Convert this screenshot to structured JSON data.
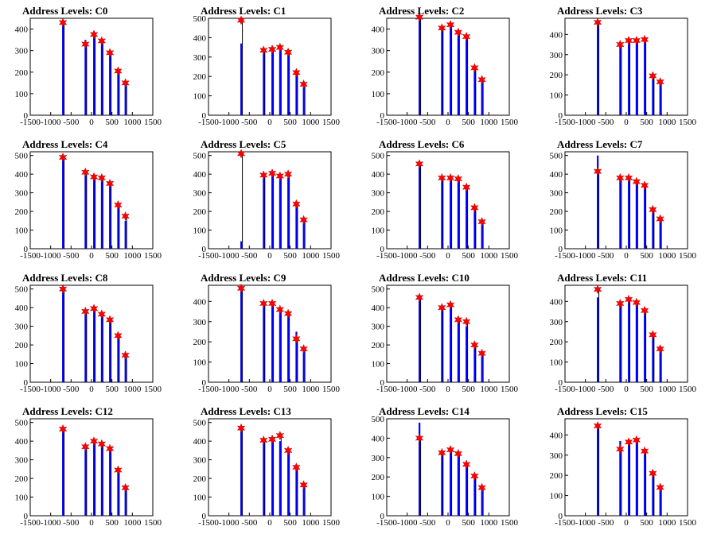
{
  "figure": {
    "background": "#ffffff"
  },
  "colors": {
    "peaks": "#0000ff",
    "raw": "#000000",
    "marker": "#ff0000",
    "axis": "#000000"
  },
  "chart_data": [
    {
      "type": "bar",
      "title": "Address Levels: C0",
      "xlim": [
        -1500,
        1500
      ],
      "ylim": [
        0,
        450
      ],
      "yticks": [
        0,
        100,
        200,
        300,
        400
      ],
      "xticks": [
        -1500,
        -1000,
        -500,
        0,
        500,
        1000,
        1500
      ],
      "peaks": [
        {
          "x": -700,
          "y": 430,
          "blue": 430
        },
        {
          "x": -150,
          "y": 330,
          "blue": 350
        },
        {
          "x": 60,
          "y": 375,
          "blue": 370
        },
        {
          "x": 250,
          "y": 345,
          "blue": 340
        },
        {
          "x": 450,
          "y": 290,
          "blue": 300
        },
        {
          "x": 650,
          "y": 205,
          "blue": 210
        },
        {
          "x": 830,
          "y": 150,
          "blue": 150
        }
      ]
    },
    {
      "type": "bar",
      "title": "Address Levels: C1",
      "xlim": [
        -1500,
        1500
      ],
      "ylim": [
        0,
        500
      ],
      "yticks": [
        0,
        100,
        200,
        300,
        400,
        500
      ],
      "xticks": [
        -1500,
        -1000,
        -500,
        0,
        500,
        1000,
        1500
      ],
      "peaks": [
        {
          "x": -700,
          "y": 490,
          "blue": 370
        },
        {
          "x": -150,
          "y": 335,
          "blue": 330
        },
        {
          "x": 60,
          "y": 340,
          "blue": 340
        },
        {
          "x": 250,
          "y": 350,
          "blue": 340
        },
        {
          "x": 450,
          "y": 325,
          "blue": 320
        },
        {
          "x": 650,
          "y": 220,
          "blue": 220
        },
        {
          "x": 830,
          "y": 160,
          "blue": 160
        }
      ]
    },
    {
      "type": "bar",
      "title": "Address Levels: C2",
      "xlim": [
        -1500,
        1500
      ],
      "ylim": [
        0,
        450
      ],
      "yticks": [
        0,
        100,
        200,
        300,
        400
      ],
      "xticks": [
        -1500,
        -1000,
        -500,
        0,
        500,
        1000,
        1500
      ],
      "peaks": [
        {
          "x": -700,
          "y": 455,
          "blue": 450
        },
        {
          "x": -150,
          "y": 405,
          "blue": 400
        },
        {
          "x": 60,
          "y": 420,
          "blue": 420
        },
        {
          "x": 250,
          "y": 385,
          "blue": 370
        },
        {
          "x": 450,
          "y": 365,
          "blue": 370
        },
        {
          "x": 650,
          "y": 220,
          "blue": 230
        },
        {
          "x": 830,
          "y": 165,
          "blue": 170
        }
      ]
    },
    {
      "type": "bar",
      "title": "Address Levels: C3",
      "xlim": [
        -1500,
        1500
      ],
      "ylim": [
        0,
        480
      ],
      "yticks": [
        0,
        100,
        200,
        300,
        400
      ],
      "xticks": [
        -1500,
        -1000,
        -500,
        0,
        500,
        1000,
        1500
      ],
      "peaks": [
        {
          "x": -700,
          "y": 460,
          "blue": 450
        },
        {
          "x": -150,
          "y": 350,
          "blue": 360
        },
        {
          "x": 60,
          "y": 370,
          "blue": 370
        },
        {
          "x": 250,
          "y": 370,
          "blue": 370
        },
        {
          "x": 450,
          "y": 375,
          "blue": 370
        },
        {
          "x": 650,
          "y": 195,
          "blue": 210
        },
        {
          "x": 830,
          "y": 165,
          "blue": 170
        }
      ]
    },
    {
      "type": "bar",
      "title": "Address Levels: C4",
      "xlim": [
        -1500,
        1500
      ],
      "ylim": [
        0,
        520
      ],
      "yticks": [
        0,
        100,
        200,
        300,
        400,
        500
      ],
      "xticks": [
        -1500,
        -1000,
        -500,
        0,
        500,
        1000,
        1500
      ],
      "peaks": [
        {
          "x": -700,
          "y": 490,
          "blue": 480
        },
        {
          "x": -150,
          "y": 410,
          "blue": 400
        },
        {
          "x": 60,
          "y": 385,
          "blue": 380
        },
        {
          "x": 250,
          "y": 380,
          "blue": 380
        },
        {
          "x": 450,
          "y": 350,
          "blue": 340
        },
        {
          "x": 650,
          "y": 235,
          "blue": 230
        },
        {
          "x": 830,
          "y": 175,
          "blue": 150
        }
      ]
    },
    {
      "type": "bar",
      "title": "Address Levels: C5",
      "xlim": [
        -1500,
        1500
      ],
      "ylim": [
        0,
        520
      ],
      "yticks": [
        0,
        100,
        200,
        300,
        400,
        500
      ],
      "xticks": [
        -1500,
        -1000,
        -500,
        0,
        500,
        1000,
        1500
      ],
      "peaks": [
        {
          "x": -700,
          "y": 510,
          "blue": 40
        },
        {
          "x": -150,
          "y": 395,
          "blue": 390
        },
        {
          "x": 60,
          "y": 405,
          "blue": 400
        },
        {
          "x": 250,
          "y": 390,
          "blue": 390
        },
        {
          "x": 450,
          "y": 400,
          "blue": 380
        },
        {
          "x": 650,
          "y": 240,
          "blue": 240
        },
        {
          "x": 830,
          "y": 155,
          "blue": 150
        }
      ]
    },
    {
      "type": "bar",
      "title": "Address Levels: C6",
      "xlim": [
        -1500,
        1500
      ],
      "ylim": [
        0,
        520
      ],
      "yticks": [
        0,
        100,
        200,
        300,
        400,
        500
      ],
      "xticks": [
        -1500,
        -1000,
        -500,
        0,
        500,
        1000,
        1500
      ],
      "peaks": [
        {
          "x": -700,
          "y": 455,
          "blue": 450
        },
        {
          "x": -150,
          "y": 380,
          "blue": 380
        },
        {
          "x": 60,
          "y": 380,
          "blue": 370
        },
        {
          "x": 250,
          "y": 375,
          "blue": 370
        },
        {
          "x": 450,
          "y": 330,
          "blue": 320
        },
        {
          "x": 650,
          "y": 220,
          "blue": 230
        },
        {
          "x": 830,
          "y": 145,
          "blue": 140
        }
      ]
    },
    {
      "type": "bar",
      "title": "Address Levels: C7",
      "xlim": [
        -1500,
        1500
      ],
      "ylim": [
        0,
        520
      ],
      "yticks": [
        0,
        100,
        200,
        300,
        400,
        500
      ],
      "xticks": [
        -1500,
        -1000,
        -500,
        0,
        500,
        1000,
        1500
      ],
      "peaks": [
        {
          "x": -700,
          "y": 415,
          "blue": 500
        },
        {
          "x": -150,
          "y": 380,
          "blue": 380
        },
        {
          "x": 60,
          "y": 380,
          "blue": 380
        },
        {
          "x": 250,
          "y": 360,
          "blue": 360
        },
        {
          "x": 450,
          "y": 340,
          "blue": 330
        },
        {
          "x": 650,
          "y": 210,
          "blue": 200
        },
        {
          "x": 830,
          "y": 160,
          "blue": 150
        }
      ]
    },
    {
      "type": "bar",
      "title": "Address Levels: C8",
      "xlim": [
        -1500,
        1500
      ],
      "ylim": [
        0,
        520
      ],
      "yticks": [
        0,
        100,
        200,
        300,
        400,
        500
      ],
      "xticks": [
        -1500,
        -1000,
        -500,
        0,
        500,
        1000,
        1500
      ],
      "peaks": [
        {
          "x": -700,
          "y": 500,
          "blue": 480
        },
        {
          "x": -150,
          "y": 380,
          "blue": 380
        },
        {
          "x": 60,
          "y": 395,
          "blue": 390
        },
        {
          "x": 250,
          "y": 365,
          "blue": 370
        },
        {
          "x": 450,
          "y": 335,
          "blue": 340
        },
        {
          "x": 650,
          "y": 250,
          "blue": 260
        },
        {
          "x": 830,
          "y": 145,
          "blue": 150
        }
      ]
    },
    {
      "type": "bar",
      "title": "Address Levels: C9",
      "xlim": [
        -1500,
        1500
      ],
      "ylim": [
        0,
        480
      ],
      "yticks": [
        0,
        100,
        200,
        300,
        400
      ],
      "xticks": [
        -1500,
        -1000,
        -500,
        0,
        500,
        1000,
        1500
      ],
      "peaks": [
        {
          "x": -700,
          "y": 465,
          "blue": 460
        },
        {
          "x": -150,
          "y": 390,
          "blue": 390
        },
        {
          "x": 60,
          "y": 390,
          "blue": 390
        },
        {
          "x": 250,
          "y": 360,
          "blue": 360
        },
        {
          "x": 450,
          "y": 340,
          "blue": 330
        },
        {
          "x": 650,
          "y": 215,
          "blue": 250
        },
        {
          "x": 830,
          "y": 165,
          "blue": 170
        }
      ]
    },
    {
      "type": "bar",
      "title": "Address Levels: C10",
      "xlim": [
        -1500,
        1500
      ],
      "ylim": [
        0,
        520
      ],
      "yticks": [
        0,
        100,
        200,
        300,
        400,
        500
      ],
      "xticks": [
        -1500,
        -1000,
        -500,
        0,
        500,
        1000,
        1500
      ],
      "peaks": [
        {
          "x": -700,
          "y": 455,
          "blue": 440
        },
        {
          "x": -150,
          "y": 400,
          "blue": 390
        },
        {
          "x": 60,
          "y": 415,
          "blue": 400
        },
        {
          "x": 250,
          "y": 335,
          "blue": 340
        },
        {
          "x": 450,
          "y": 325,
          "blue": 300
        },
        {
          "x": 650,
          "y": 200,
          "blue": 210
        },
        {
          "x": 830,
          "y": 155,
          "blue": 150
        }
      ]
    },
    {
      "type": "bar",
      "title": "Address Levels: C11",
      "xlim": [
        -1500,
        1500
      ],
      "ylim": [
        0,
        480
      ],
      "yticks": [
        0,
        100,
        200,
        300,
        400
      ],
      "xticks": [
        -1500,
        -1000,
        -500,
        0,
        500,
        1000,
        1500
      ],
      "peaks": [
        {
          "x": -700,
          "y": 460,
          "blue": 420
        },
        {
          "x": -150,
          "y": 390,
          "blue": 390
        },
        {
          "x": 60,
          "y": 410,
          "blue": 400
        },
        {
          "x": 250,
          "y": 395,
          "blue": 390
        },
        {
          "x": 450,
          "y": 355,
          "blue": 350
        },
        {
          "x": 650,
          "y": 235,
          "blue": 240
        },
        {
          "x": 830,
          "y": 165,
          "blue": 170
        }
      ]
    },
    {
      "type": "bar",
      "title": "Address Levels: C12",
      "xlim": [
        -1500,
        1500
      ],
      "ylim": [
        0,
        520
      ],
      "yticks": [
        0,
        100,
        200,
        300,
        400,
        500
      ],
      "xticks": [
        -1500,
        -1000,
        -500,
        0,
        500,
        1000,
        1500
      ],
      "peaks": [
        {
          "x": -700,
          "y": 465,
          "blue": 460
        },
        {
          "x": -150,
          "y": 370,
          "blue": 370
        },
        {
          "x": 60,
          "y": 400,
          "blue": 400
        },
        {
          "x": 250,
          "y": 385,
          "blue": 380
        },
        {
          "x": 450,
          "y": 360,
          "blue": 350
        },
        {
          "x": 650,
          "y": 245,
          "blue": 240
        },
        {
          "x": 830,
          "y": 150,
          "blue": 150
        }
      ]
    },
    {
      "type": "bar",
      "title": "Address Levels: C13",
      "xlim": [
        -1500,
        1500
      ],
      "ylim": [
        0,
        520
      ],
      "yticks": [
        0,
        100,
        200,
        300,
        400,
        500
      ],
      "xticks": [
        -1500,
        -1000,
        -500,
        0,
        500,
        1000,
        1500
      ],
      "peaks": [
        {
          "x": -700,
          "y": 470,
          "blue": 460
        },
        {
          "x": -150,
          "y": 405,
          "blue": 400
        },
        {
          "x": 60,
          "y": 410,
          "blue": 400
        },
        {
          "x": 250,
          "y": 430,
          "blue": 400
        },
        {
          "x": 450,
          "y": 350,
          "blue": 340
        },
        {
          "x": 650,
          "y": 260,
          "blue": 260
        },
        {
          "x": 830,
          "y": 165,
          "blue": 170
        }
      ]
    },
    {
      "type": "bar",
      "title": "Address Levels: C14",
      "xlim": [
        -1500,
        1500
      ],
      "ylim": [
        0,
        500
      ],
      "yticks": [
        0,
        100,
        200,
        300,
        400,
        500
      ],
      "xticks": [
        -1500,
        -1000,
        -500,
        0,
        500,
        1000,
        1500
      ],
      "peaks": [
        {
          "x": -700,
          "y": 400,
          "blue": 480
        },
        {
          "x": -150,
          "y": 325,
          "blue": 320
        },
        {
          "x": 60,
          "y": 340,
          "blue": 330
        },
        {
          "x": 250,
          "y": 320,
          "blue": 320
        },
        {
          "x": 450,
          "y": 265,
          "blue": 260
        },
        {
          "x": 650,
          "y": 205,
          "blue": 200
        },
        {
          "x": 830,
          "y": 145,
          "blue": 150
        }
      ]
    },
    {
      "type": "bar",
      "title": "Address Levels: C15",
      "xlim": [
        -1500,
        1500
      ],
      "ylim": [
        0,
        480
      ],
      "yticks": [
        0,
        100,
        200,
        300,
        400
      ],
      "xticks": [
        -1500,
        -1000,
        -500,
        0,
        500,
        1000,
        1500
      ],
      "peaks": [
        {
          "x": -700,
          "y": 445,
          "blue": 450
        },
        {
          "x": -150,
          "y": 330,
          "blue": 370
        },
        {
          "x": 60,
          "y": 365,
          "blue": 360
        },
        {
          "x": 250,
          "y": 375,
          "blue": 370
        },
        {
          "x": 450,
          "y": 320,
          "blue": 320
        },
        {
          "x": 650,
          "y": 210,
          "blue": 220
        },
        {
          "x": 830,
          "y": 140,
          "blue": 140
        }
      ]
    }
  ]
}
